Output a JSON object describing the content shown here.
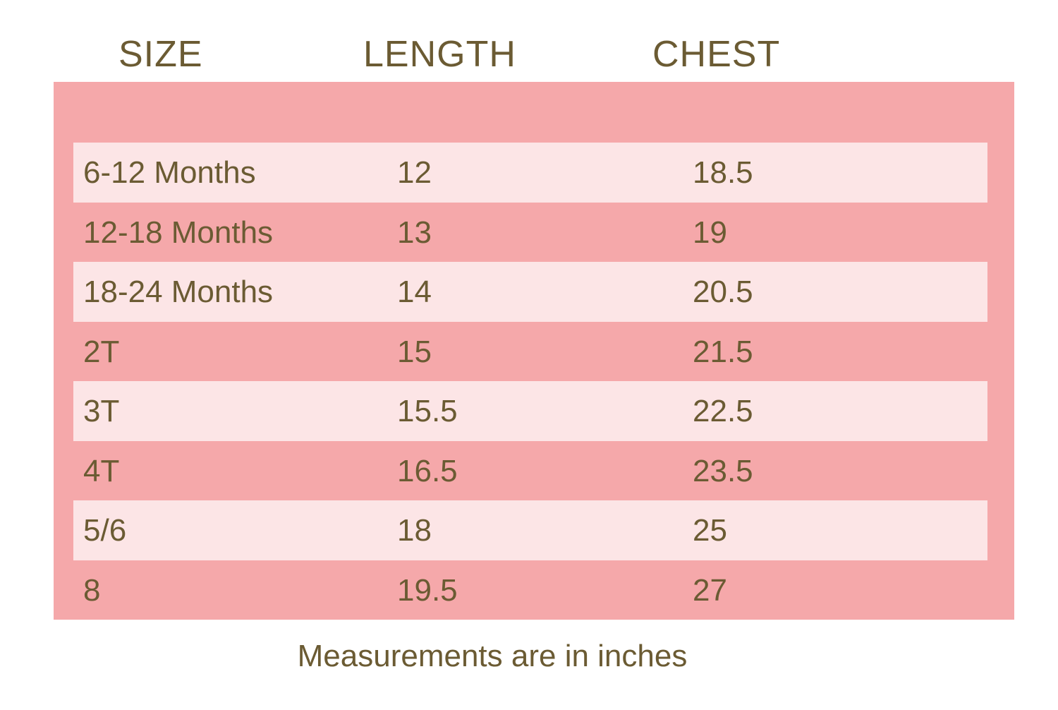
{
  "table": {
    "headers": [
      "SIZE",
      "LENGTH",
      "CHEST"
    ],
    "rows": [
      [
        "6-12 Months",
        "12",
        "18.5"
      ],
      [
        "12-18 Months",
        "13",
        "19"
      ],
      [
        "18-24 Months",
        "14",
        "20.5"
      ],
      [
        "2T",
        "15",
        "21.5"
      ],
      [
        "3T",
        "15.5",
        "22.5"
      ],
      [
        "4T",
        "16.5",
        "23.5"
      ],
      [
        "5/6",
        "18",
        "25"
      ],
      [
        "8",
        "19.5",
        "27"
      ]
    ]
  },
  "footer": {
    "note": "Measurements are in inches"
  }
}
